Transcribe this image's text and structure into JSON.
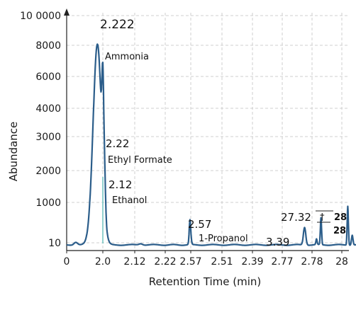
{
  "chart_data": {
    "type": "line",
    "title": "",
    "xlabel": "Retention Time (min)",
    "ylabel": "Abundance",
    "grid": true,
    "line_color": "#2b5d8a",
    "x_ticks": [
      "0",
      "2.0",
      "2.12",
      "2.22",
      "2.57",
      "2.51",
      "2.39",
      "2.77",
      "2.78",
      "28"
    ],
    "y_ticks": [
      "10",
      "1000",
      "2000",
      "3000",
      "4000",
      "6000",
      "8000",
      "10 0000"
    ],
    "peaks": [
      {
        "value_label": "2.222",
        "name": "Ammonia",
        "x": 0.85,
        "y": 8200
      },
      {
        "value_label": "2.22",
        "name": "Ethyl Formate",
        "x": 1.12,
        "y": 2200
      },
      {
        "value_label": "2.12",
        "name": "Ethanol",
        "x": 1.16,
        "y": 1000
      },
      {
        "value_label": "2.57",
        "name": "1-Propanol",
        "x": 3.97,
        "y": 10
      },
      {
        "value_label": "3.39",
        "name": "",
        "x": 7.75,
        "y": 10
      },
      {
        "value_label": "27.32",
        "name": "",
        "x": 8.3,
        "y": 10
      },
      {
        "value_label": "28",
        "name": "",
        "x": 9.2,
        "y": 10
      }
    ],
    "extra_labels": [
      "28",
      "†"
    ]
  }
}
